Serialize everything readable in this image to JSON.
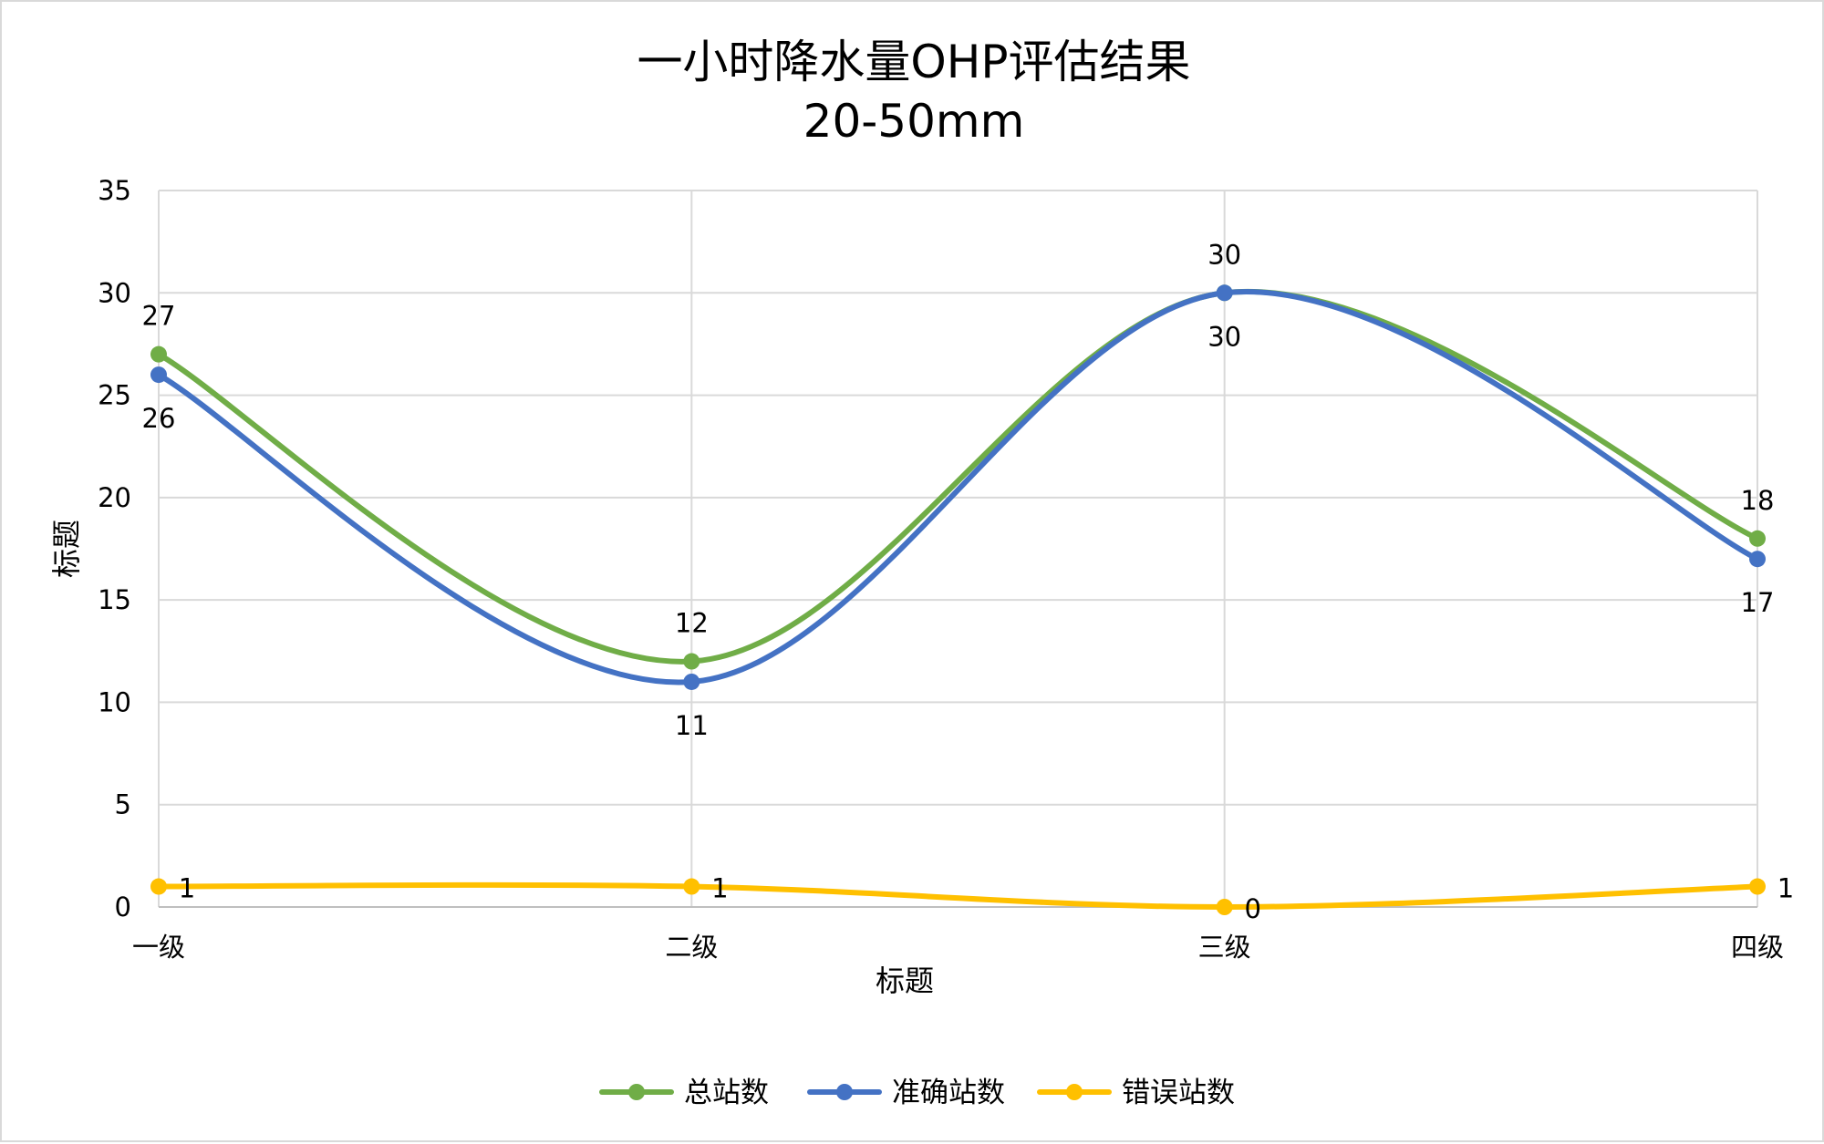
{
  "chart_data": {
    "type": "line",
    "title": "一小时降水量OHP评估结果",
    "subtitle": "20-50mm",
    "xlabel": "标题",
    "ylabel": "标题",
    "categories": [
      "一级",
      "二级",
      "三级",
      "四级"
    ],
    "ylim": [
      0,
      35
    ],
    "yticks": [
      0,
      5,
      10,
      15,
      20,
      25,
      30,
      35
    ],
    "grid": true,
    "smooth": true,
    "legend_position": "bottom",
    "series": [
      {
        "name": "总站数",
        "values": [
          27,
          12,
          30,
          18
        ],
        "color": "#70ad47",
        "label_side": [
          "above",
          "above",
          "above",
          "above"
        ]
      },
      {
        "name": "准确站数",
        "values": [
          26,
          11,
          30,
          17
        ],
        "color": "#4472c4",
        "label_side": [
          "below",
          "below",
          "below",
          "below"
        ]
      },
      {
        "name": "错误站数",
        "values": [
          1,
          1,
          0,
          1
        ],
        "color": "#ffc000",
        "label_side": [
          "right",
          "right",
          "right",
          "right"
        ]
      }
    ]
  }
}
